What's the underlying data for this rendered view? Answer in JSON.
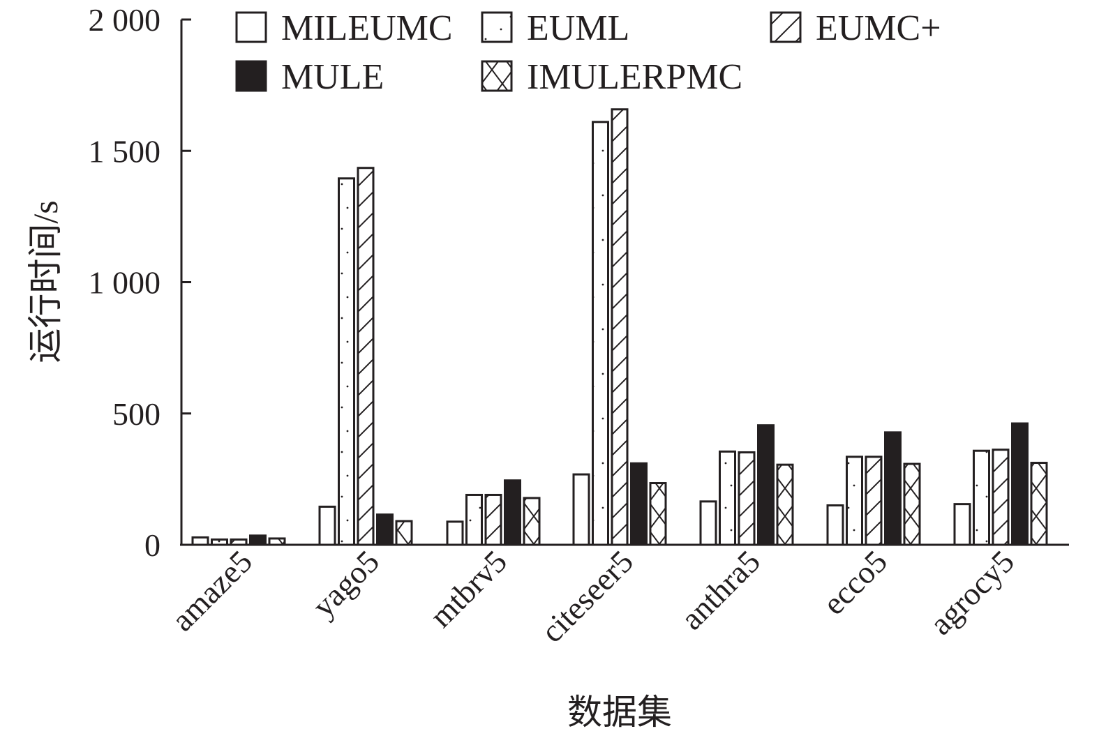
{
  "chart_data": {
    "type": "bar",
    "title": "",
    "xlabel": "数据集",
    "ylabel": "运行时间/s",
    "ylim": [
      0,
      2000
    ],
    "yticks": [
      0,
      500,
      1000,
      1500,
      2000
    ],
    "ytick_labels": [
      "0",
      "500",
      "1 000",
      "1 500",
      "2 000"
    ],
    "grid": false,
    "legend_position": "top",
    "categories": [
      "amaze5",
      "yago5",
      "mtbrv5",
      "citeseer5",
      "anthra5",
      "ecco5",
      "agrocy5"
    ],
    "series": [
      {
        "name": "MILEUMC",
        "pattern": "empty",
        "values": [
          28,
          145,
          88,
          268,
          165,
          150,
          155
        ]
      },
      {
        "name": "EUML",
        "pattern": "dots",
        "values": [
          20,
          1395,
          190,
          1610,
          355,
          335,
          358
        ]
      },
      {
        "name": "EUMC+",
        "pattern": "diagonal",
        "values": [
          20,
          1435,
          190,
          1658,
          352,
          335,
          362
        ]
      },
      {
        "name": "MULE",
        "pattern": "solid",
        "values": [
          35,
          115,
          245,
          310,
          455,
          428,
          462
        ]
      },
      {
        "name": "IMULERPMC",
        "pattern": "crosshatch",
        "values": [
          24,
          90,
          178,
          235,
          305,
          308,
          312
        ]
      }
    ],
    "colors": {
      "ink": "#231f20",
      "background": "#ffffff"
    }
  }
}
